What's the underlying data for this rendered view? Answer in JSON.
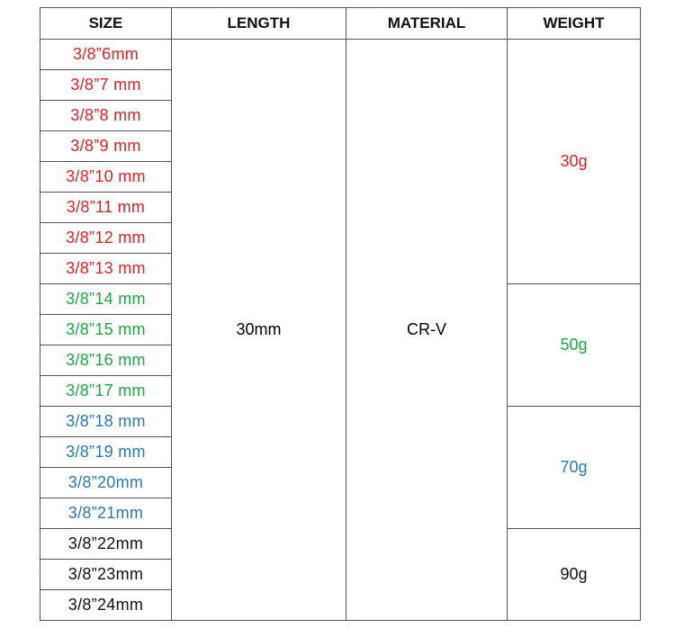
{
  "table": {
    "header": [
      "SIZE",
      "LENGTH",
      "MATERIAL",
      "WEIGHT"
    ],
    "length": "30mm",
    "material": "CR-V",
    "groups": [
      {
        "weight": "30g",
        "color": "#e0232b",
        "sizes": [
          "3/8”6mm",
          "3/8”7 mm",
          "3/8”8 mm",
          "3/8”9 mm",
          "3/8”10 mm",
          "3/8”11 mm",
          "3/8”12 mm",
          "3/8”13 mm"
        ]
      },
      {
        "weight": "50g",
        "color": "#23a547",
        "sizes": [
          "3/8”14 mm",
          "3/8”15 mm",
          "3/8”16 mm",
          "3/8”17 mm"
        ]
      },
      {
        "weight": "70g",
        "color": "#2a78b8",
        "sizes": [
          "3/8”18 mm",
          "3/8”19 mm",
          "3/8”20mm",
          "3/8”21mm"
        ]
      },
      {
        "weight": "90g",
        "color": "#111111",
        "sizes": [
          "3/8”22mm",
          "3/8”23mm",
          "3/8”24mm"
        ]
      }
    ]
  }
}
